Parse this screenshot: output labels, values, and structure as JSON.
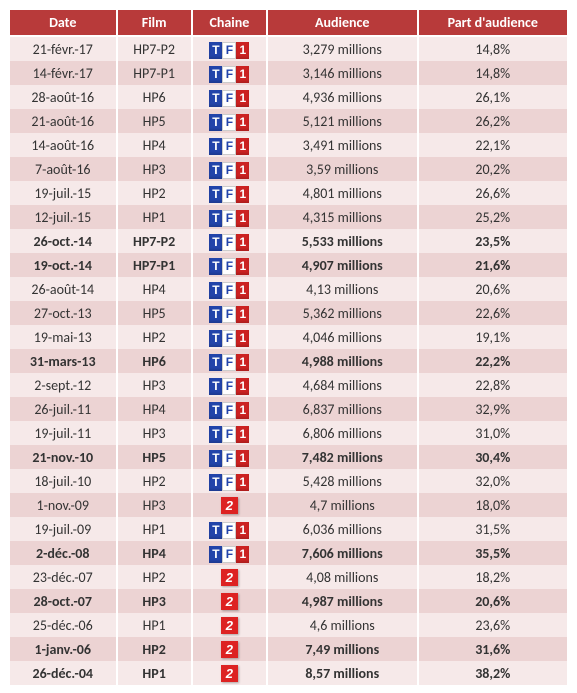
{
  "columns": [
    "Date",
    "Film",
    "Chaine",
    "Audience",
    "Part d'audience"
  ],
  "channels": {
    "tf1": {
      "type": "tf1",
      "segments": [
        "T",
        "F",
        "1"
      ]
    },
    "f2": {
      "type": "f2",
      "label": "2"
    }
  },
  "rows": [
    {
      "date": "21-févr.-17",
      "film": "HP7-P2",
      "chaine": "tf1",
      "audience": "3,279 millions",
      "part": "14,8%",
      "bold": false
    },
    {
      "date": "14-févr.-17",
      "film": "HP7-P1",
      "chaine": "tf1",
      "audience": "3,146 millions",
      "part": "14,8%",
      "bold": false
    },
    {
      "date": "28-août-16",
      "film": "HP6",
      "chaine": "tf1",
      "audience": "4,936 millions",
      "part": "26,1%",
      "bold": false
    },
    {
      "date": "21-août-16",
      "film": "HP5",
      "chaine": "tf1",
      "audience": "5,121 millions",
      "part": "26,2%",
      "bold": false
    },
    {
      "date": "14-août-16",
      "film": "HP4",
      "chaine": "tf1",
      "audience": "3,491 millions",
      "part": "22,1%",
      "bold": false
    },
    {
      "date": "7-août-16",
      "film": "HP3",
      "chaine": "tf1",
      "audience": "3,59 millions",
      "part": "20,2%",
      "bold": false
    },
    {
      "date": "19-juil.-15",
      "film": "HP2",
      "chaine": "tf1",
      "audience": "4,801 millions",
      "part": "26,6%",
      "bold": false
    },
    {
      "date": "12-juil.-15",
      "film": "HP1",
      "chaine": "tf1",
      "audience": "4,315 millions",
      "part": "25,2%",
      "bold": false
    },
    {
      "date": "26-oct.-14",
      "film": "HP7-P2",
      "chaine": "tf1",
      "audience": "5,533 millions",
      "part": "23,5%",
      "bold": true
    },
    {
      "date": "19-oct.-14",
      "film": "HP7-P1",
      "chaine": "tf1",
      "audience": "4,907 millions",
      "part": "21,6%",
      "bold": true
    },
    {
      "date": "26-août-14",
      "film": "HP4",
      "chaine": "tf1",
      "audience": "4,13 millions",
      "part": "20,6%",
      "bold": false
    },
    {
      "date": "27-oct.-13",
      "film": "HP5",
      "chaine": "tf1",
      "audience": "5,362 millions",
      "part": "22,6%",
      "bold": false
    },
    {
      "date": "19-mai-13",
      "film": "HP2",
      "chaine": "tf1",
      "audience": "4,046 millions",
      "part": "19,1%",
      "bold": false
    },
    {
      "date": "31-mars-13",
      "film": "HP6",
      "chaine": "tf1",
      "audience": "4,988 millions",
      "part": "22,2%",
      "bold": true
    },
    {
      "date": "2-sept.-12",
      "film": "HP3",
      "chaine": "tf1",
      "audience": "4,684 millions",
      "part": "22,8%",
      "bold": false
    },
    {
      "date": "26-juil.-11",
      "film": "HP4",
      "chaine": "tf1",
      "audience": "6,837 millions",
      "part": "32,9%",
      "bold": false
    },
    {
      "date": "19-juil.-11",
      "film": "HP3",
      "chaine": "tf1",
      "audience": "6,806 millions",
      "part": "31,0%",
      "bold": false
    },
    {
      "date": "21-nov.-10",
      "film": "HP5",
      "chaine": "tf1",
      "audience": "7,482 millions",
      "part": "30,4%",
      "bold": true
    },
    {
      "date": "18-juil.-10",
      "film": "HP2",
      "chaine": "tf1",
      "audience": "5,428 millions",
      "part": "32,0%",
      "bold": false
    },
    {
      "date": "1-nov.-09",
      "film": "HP3",
      "chaine": "f2",
      "audience": "4,7 millions",
      "part": "18,0%",
      "bold": false
    },
    {
      "date": "19-juil.-09",
      "film": "HP1",
      "chaine": "tf1",
      "audience": "6,036 millions",
      "part": "31,5%",
      "bold": false
    },
    {
      "date": "2-déc.-08",
      "film": "HP4",
      "chaine": "tf1",
      "audience": "7,606 millions",
      "part": "35,5%",
      "bold": true
    },
    {
      "date": "23-déc.-07",
      "film": "HP2",
      "chaine": "f2",
      "audience": "4,08 millions",
      "part": "18,2%",
      "bold": false
    },
    {
      "date": "28-oct.-07",
      "film": "HP3",
      "chaine": "f2",
      "audience": "4,987 millions",
      "part": "20,6%",
      "bold": true
    },
    {
      "date": "25-déc.-06",
      "film": "HP1",
      "chaine": "f2",
      "audience": "4,6 millions",
      "part": "23,6%",
      "bold": false
    },
    {
      "date": "1-janv.-06",
      "film": "HP2",
      "chaine": "f2",
      "audience": "7,49 millions",
      "part": "31,6%",
      "bold": true
    },
    {
      "date": "26-déc.-04",
      "film": "HP1",
      "chaine": "f2",
      "audience": "8,57 millions",
      "part": "38,2%",
      "bold": true
    }
  ],
  "style": {
    "header_bg": "#b83a3a",
    "row_light_bg": "#f6e9e9",
    "row_dark_bg": "#ecd3d3"
  }
}
